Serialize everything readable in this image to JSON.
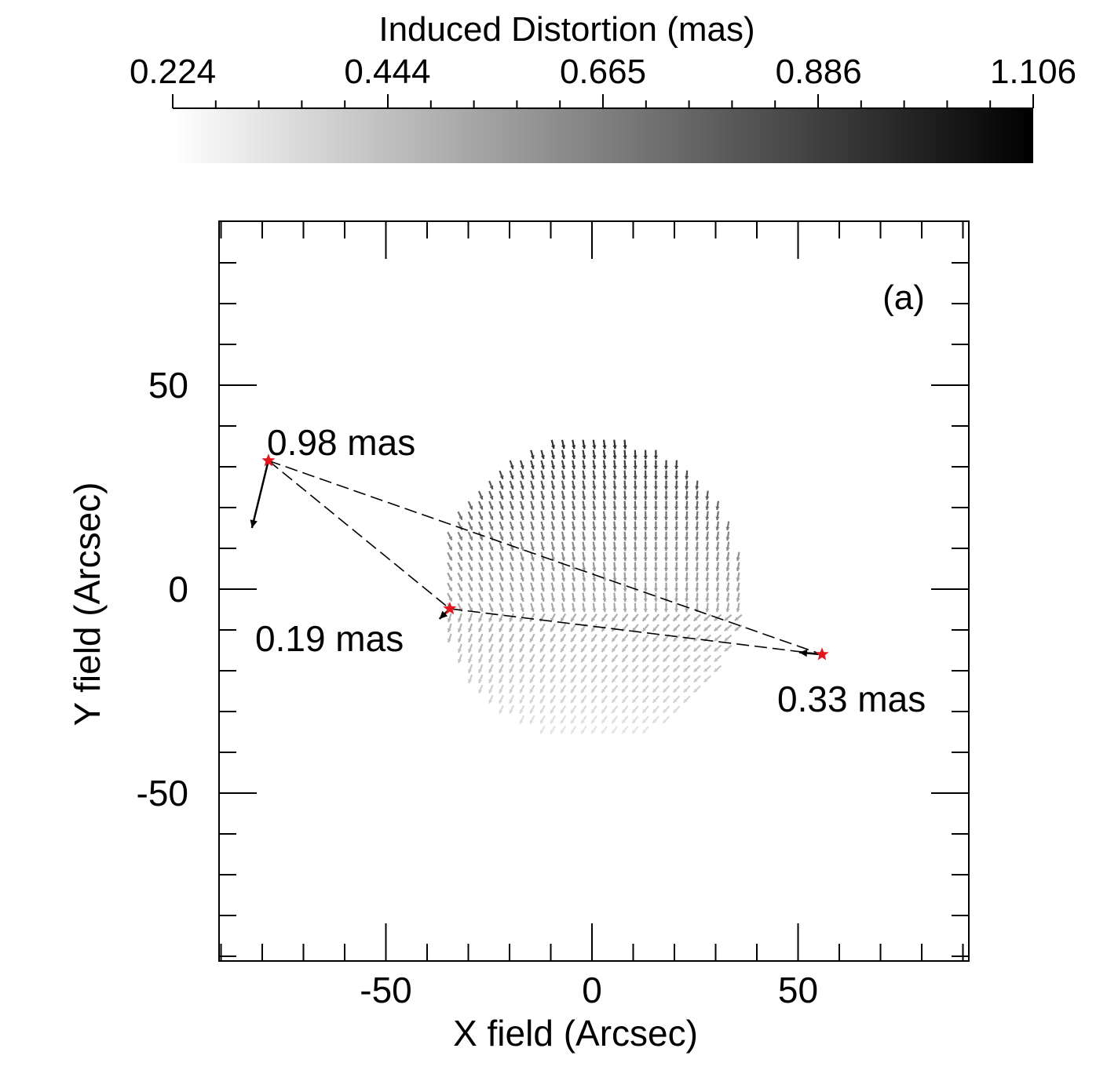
{
  "chart_data": {
    "type": "quiver",
    "panel_label": "(a)",
    "colorbar": {
      "title": "Induced Distortion (mas)",
      "min": 0.224,
      "max": 1.106,
      "tick_values": [
        0.224,
        0.444,
        0.665,
        0.886,
        1.106
      ],
      "tick_labels": [
        "0.224",
        "0.444",
        "0.665",
        "0.886",
        "1.106"
      ],
      "colors": [
        "#ffffff",
        "#000000"
      ]
    },
    "xlabel": "X field (Arcsec)",
    "ylabel": "Y field (Arcsec)",
    "xlim": [
      -90,
      91
    ],
    "ylim": [
      -90,
      91
    ],
    "major_ticks": [
      -50,
      0,
      50
    ],
    "tick_labels": [
      "-50",
      "0",
      "50"
    ],
    "minor_tick_step": 10,
    "field": {
      "center": [
        0,
        0
      ],
      "radius": 37,
      "grid_step": 2.5,
      "top_value_mas": 0.98,
      "center_value_mas": 0.55,
      "bottom_value_mas": 0.3,
      "arrow_length_data": 2.2
    },
    "stars": [
      {
        "name": "star-1",
        "x": -78.5,
        "y": 31.5,
        "value": 0.98,
        "label": "0.98 mas",
        "dx": -4.0,
        "dy": -16.5
      },
      {
        "name": "star-2",
        "x": -34.5,
        "y": -4.8,
        "value": 0.19,
        "label": "0.19 mas",
        "dx": -2.5,
        "dy": -2.5
      },
      {
        "name": "star-3",
        "x": 55.8,
        "y": -16.0,
        "value": 0.33,
        "label": "0.33 mas",
        "dx": -5.5,
        "dy": 0.5
      }
    ],
    "connections": [
      [
        "star-1",
        "star-2"
      ],
      [
        "star-1",
        "star-3"
      ],
      [
        "star-2",
        "star-3"
      ]
    ],
    "star_color": "#e8141b"
  }
}
